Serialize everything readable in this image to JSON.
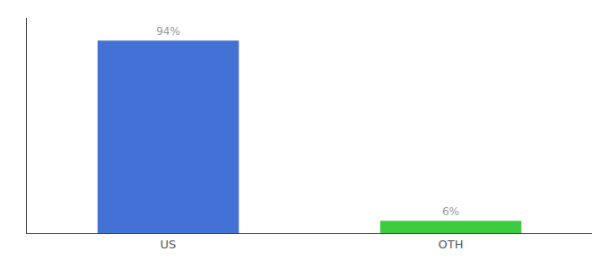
{
  "chart_data": {
    "type": "bar",
    "categories": [
      "US",
      "OTH"
    ],
    "values": [
      94,
      6
    ],
    "value_labels": [
      "94%",
      "6%"
    ],
    "data_labels": true,
    "colors": [
      "#4472d4",
      "#3dcc3d"
    ],
    "ylim": [
      0,
      105
    ],
    "tick_labels": "x",
    "grid": false
  }
}
